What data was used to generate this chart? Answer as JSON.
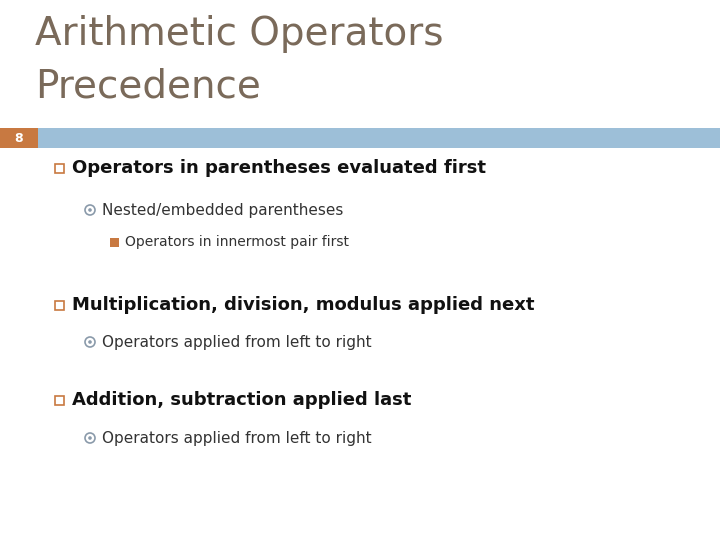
{
  "title_line1": "Arithmetic Operators",
  "title_line2": "Precedence",
  "slide_number": "8",
  "title_color": "#7a6a5a",
  "title_fontsize": 28,
  "bar_color": "#9dbfd8",
  "bar_left_color": "#c87941",
  "background_color": "#ffffff",
  "slide_number_color": "#ffffff",
  "bullet1_text": "Operators in parentheses evaluated first",
  "sub1_text": "Nested/embedded parentheses",
  "sub2_text": "Operators in innermost pair first",
  "bullet2_text": "Multiplication, division, modulus applied next",
  "sub3_text": "Operators applied from left to right",
  "bullet3_text": "Addition, subtraction applied last",
  "sub4_text": "Operators applied from left to right",
  "bullet_fontsize": 13,
  "sub_fontsize": 11,
  "sub2_fontsize": 10,
  "outline_square_color": "#c87941",
  "circle_bullet_color": "#9dbfd8",
  "small_sq_color": "#c87941",
  "text_dark": "#111111",
  "text_sub": "#333333"
}
